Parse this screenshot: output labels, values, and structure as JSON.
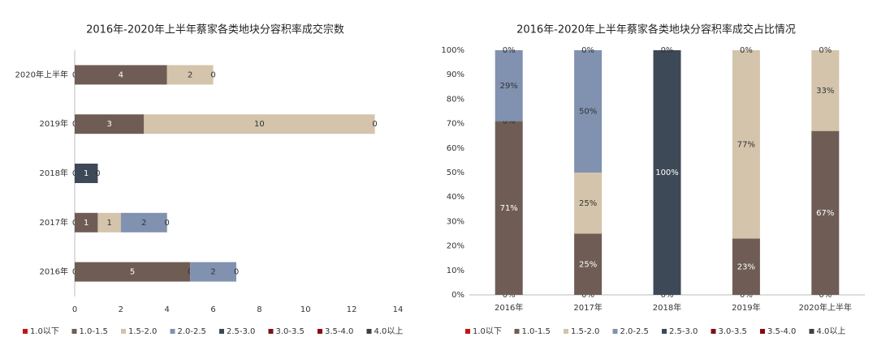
{
  "chart_data": [
    {
      "type": "hbar_stacked",
      "title": "2016年-2020年上半年蔡家各类地块分容积率成交宗数",
      "categories": [
        "2016年",
        "2017年",
        "2018年",
        "2019年",
        "2020年上半年"
      ],
      "xlim": [
        0,
        14
      ],
      "xticks": [
        0,
        2,
        4,
        6,
        8,
        10,
        12,
        14
      ],
      "series": [
        {
          "name": "1.0以下",
          "color": "#c0161b",
          "values": [
            0,
            0,
            0,
            0,
            0
          ]
        },
        {
          "name": "1.0-1.5",
          "color": "#6f5d55",
          "values": [
            5,
            1,
            null,
            3,
            4
          ]
        },
        {
          "name": "1.5-2.0",
          "color": "#d3c4ab",
          "values": [
            0,
            1,
            null,
            10,
            2
          ]
        },
        {
          "name": "2.0-2.5",
          "color": "#8191b0",
          "values": [
            2,
            2,
            null,
            0,
            0
          ]
        },
        {
          "name": "2.5-3.0",
          "color": "#3e4957",
          "values": [
            0,
            0,
            1,
            null,
            null
          ]
        },
        {
          "name": "3.0-3.5",
          "color": "#7c1214",
          "values": [
            null,
            null,
            0,
            null,
            null
          ]
        },
        {
          "name": "3.5-4.0",
          "color": "#8b0a0f",
          "values": [
            null,
            null,
            null,
            null,
            null
          ]
        },
        {
          "name": "4.0以上",
          "color": "#404040",
          "values": [
            null,
            null,
            null,
            null,
            null
          ]
        }
      ]
    },
    {
      "type": "bar_stacked",
      "title": "2016年-2020年上半年蔡家各类地块分容积率成交占比情况",
      "categories": [
        "2016年",
        "2017年",
        "2018年",
        "2019年",
        "2020年上半年"
      ],
      "ylim": [
        0,
        100
      ],
      "yticks": [
        {
          "value": 0,
          "label": "0%"
        },
        {
          "value": 10,
          "label": "10%"
        },
        {
          "value": 20,
          "label": "20%"
        },
        {
          "value": 30,
          "label": "30%"
        },
        {
          "value": 40,
          "label": "40%"
        },
        {
          "value": 50,
          "label": "50%"
        },
        {
          "value": 60,
          "label": "60%"
        },
        {
          "value": 70,
          "label": "70%"
        },
        {
          "value": 80,
          "label": "80%"
        },
        {
          "value": 90,
          "label": "90%"
        },
        {
          "value": 100,
          "label": "100%"
        }
      ],
      "series": [
        {
          "name": "1.0以下",
          "color": "#c0161b",
          "values": [
            0,
            0,
            0,
            0,
            0
          ],
          "value_labels": [
            "0%",
            "0%",
            "0%",
            "0%",
            "0%"
          ]
        },
        {
          "name": "1.0-1.5",
          "color": "#6f5d55",
          "values": [
            71,
            25,
            null,
            23,
            67
          ],
          "value_labels": [
            "71%",
            "25%",
            null,
            "23%",
            "67%"
          ]
        },
        {
          "name": "1.5-2.0",
          "color": "#d3c4ab",
          "values": [
            0,
            25,
            null,
            77,
            33
          ],
          "value_labels": [
            "0%",
            "25%",
            null,
            "77%",
            "33%"
          ]
        },
        {
          "name": "2.0-2.5",
          "color": "#8191b0",
          "values": [
            29,
            50,
            null,
            0,
            0
          ],
          "value_labels": [
            "29%",
            "50%",
            null,
            "0%",
            "0%"
          ]
        },
        {
          "name": "2.5-3.0",
          "color": "#3e4957",
          "values": [
            0,
            0,
            100,
            null,
            null
          ],
          "value_labels": [
            "0%",
            "0%",
            "100%",
            null,
            null
          ]
        },
        {
          "name": "3.0-3.5",
          "color": "#7c1214",
          "values": [
            null,
            null,
            0,
            null,
            null
          ],
          "value_labels": [
            null,
            null,
            "0%",
            null,
            null
          ]
        },
        {
          "name": "3.5-4.0",
          "color": "#8b0a0f",
          "values": [
            null,
            null,
            null,
            null,
            null
          ],
          "value_labels": [
            null,
            null,
            null,
            null,
            null
          ]
        },
        {
          "name": "4.0以上",
          "color": "#404040",
          "values": [
            null,
            null,
            null,
            null,
            null
          ],
          "value_labels": [
            null,
            null,
            null,
            null,
            null
          ]
        }
      ]
    }
  ]
}
